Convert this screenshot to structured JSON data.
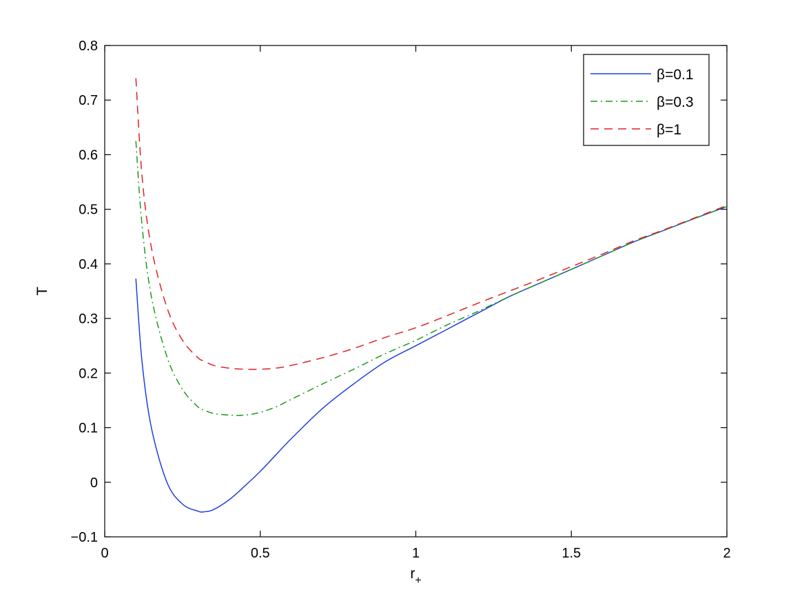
{
  "chart_data": {
    "type": "line",
    "title": "",
    "xlabel_main": "r",
    "xlabel_sub": "+",
    "ylabel": "T",
    "xlim": [
      0,
      2
    ],
    "ylim": [
      -0.1,
      0.8
    ],
    "x_ticks": [
      0,
      0.5,
      1,
      1.5,
      2
    ],
    "y_ticks": [
      -0.1,
      0,
      0.1,
      0.2,
      0.3,
      0.4,
      0.5,
      0.6,
      0.7,
      0.8
    ],
    "x_tick_labels": [
      "0",
      "0.5",
      "1",
      "1.5",
      "2"
    ],
    "y_tick_labels": [
      "−0.1",
      "0",
      "0.1",
      "0.2",
      "0.3",
      "0.4",
      "0.5",
      "0.6",
      "0.7",
      "0.8"
    ],
    "grid": false,
    "legend_position": "top-right",
    "x": [
      0.1,
      0.12,
      0.15,
      0.2,
      0.25,
      0.3,
      0.32,
      0.35,
      0.4,
      0.45,
      0.5,
      0.55,
      0.6,
      0.7,
      0.8,
      0.9,
      1.0,
      1.1,
      1.2,
      1.3,
      1.4,
      1.5,
      1.6,
      1.7,
      1.8,
      1.9,
      2.0
    ],
    "series": [
      {
        "name": "β=0.1",
        "color": "#1f3fdf",
        "dash": "solid",
        "values": [
          0.373,
          0.22,
          0.1,
          0.0,
          -0.04,
          -0.053,
          -0.054,
          -0.05,
          -0.032,
          -0.007,
          0.02,
          0.05,
          0.08,
          0.135,
          0.18,
          0.22,
          0.25,
          0.28,
          0.31,
          0.34,
          0.365,
          0.39,
          0.415,
          0.44,
          0.462,
          0.484,
          0.505
        ]
      },
      {
        "name": "β=0.3",
        "color": "#1a9a1a",
        "dash": "dashdot",
        "values": [
          0.625,
          0.47,
          0.34,
          0.23,
          0.17,
          0.138,
          0.132,
          0.126,
          0.123,
          0.123,
          0.128,
          0.138,
          0.152,
          0.18,
          0.207,
          0.235,
          0.26,
          0.288,
          0.313,
          0.34,
          0.365,
          0.39,
          0.415,
          0.44,
          0.462,
          0.484,
          0.505
        ]
      },
      {
        "name": "β=1",
        "color": "#e02020",
        "dash": "dashed",
        "values": [
          0.74,
          0.56,
          0.43,
          0.32,
          0.26,
          0.228,
          0.222,
          0.214,
          0.209,
          0.207,
          0.207,
          0.209,
          0.214,
          0.228,
          0.245,
          0.265,
          0.283,
          0.305,
          0.328,
          0.35,
          0.372,
          0.395,
          0.418,
          0.442,
          0.463,
          0.485,
          0.507
        ]
      }
    ]
  }
}
